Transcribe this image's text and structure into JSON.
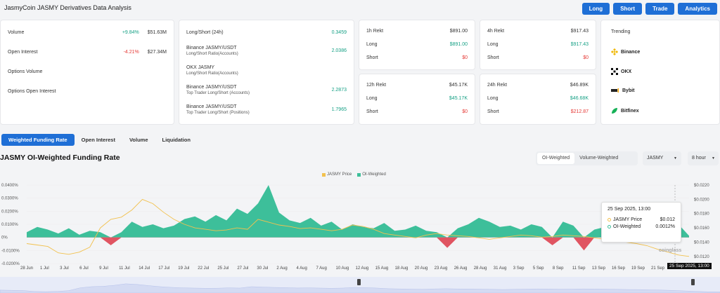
{
  "header": {
    "title": "JasmyCoin JASMY Derivatives Data Analysis",
    "buttons": [
      "Long",
      "Short",
      "Trade",
      "Analytics"
    ]
  },
  "overview": {
    "rows": [
      {
        "label": "Volume",
        "pct": "+9.84%",
        "value": "$51.63M"
      },
      {
        "label": "Open Interest",
        "pct": "-4.21%",
        "value": "$27.34M"
      },
      {
        "label": "Options Volume"
      },
      {
        "label": "Options Open Interest"
      }
    ]
  },
  "longshort": {
    "rows": [
      {
        "label": "Long/Short (24h)",
        "value": "0.3459"
      },
      {
        "label": "Binance JASMY/USDT",
        "sub": "Long/Short Ratio(Accounts)",
        "value": "2.0386"
      },
      {
        "label": "OKX JASMY",
        "sub": "Long/Short Ratio(Accounts)",
        "value": ""
      },
      {
        "label": "Binance JASMY/USDT",
        "sub": "Top Trader Long/Short (Accounts)",
        "value": "2.2873"
      },
      {
        "label": "Binance JASMY/USDT",
        "sub": "Top Trader Long/Short (Positions)",
        "value": "1.7965"
      }
    ]
  },
  "rekt": {
    "h1": {
      "title": "1h Rekt",
      "total": "$891.00",
      "long": "$891.00",
      "short": "$0"
    },
    "h4": {
      "title": "4h Rekt",
      "total": "$917.43",
      "long": "$917.43",
      "short": "$0"
    },
    "h12": {
      "title": "12h Rekt",
      "total": "$45.17K",
      "long": "$45.17K",
      "short": "$0"
    },
    "h24": {
      "title": "24h Rekt",
      "total": "$46.89K",
      "long": "$46.68K",
      "short": "$212.87"
    },
    "long_label": "Long",
    "short_label": "Short"
  },
  "trending": {
    "title": "Trending",
    "items": [
      "Binance",
      "OKX",
      "Bybit",
      "Bitfinex"
    ]
  },
  "tabs": [
    "Weighted Funding Rate",
    "Open Interest",
    "Volume",
    "Liquidation"
  ],
  "chart_header": {
    "title": "JASMY OI-Weighted Funding Rate",
    "segments": [
      "OI-Weighted",
      "Volume-Weighted"
    ],
    "symbol": "JASMY",
    "interval": "8 hour"
  },
  "tooltip": {
    "title": "25 Sep 2025, 13:00",
    "rows": [
      {
        "name": "JASMY Price",
        "value": "$0.012"
      },
      {
        "name": "OI-Weighted",
        "value": "0.0012%"
      }
    ],
    "time_label": "25 Sep 2025, 13:00"
  },
  "watermark": "coinglass",
  "colors": {
    "accent": "#1f6fd6",
    "funding_pos": "#3dbf9a",
    "funding_neg": "#e05562",
    "price": "#f2c14e"
  },
  "chart_data": {
    "type": "area",
    "x_tick_labels": [
      "28 Jun",
      "1 Jul",
      "3 Jul",
      "6 Jul",
      "9 Jul",
      "11 Jul",
      "14 Jul",
      "17 Jul",
      "19 Jul",
      "22 Jul",
      "25 Jul",
      "27 Jul",
      "30 Jul",
      "2 Aug",
      "4 Aug",
      "7 Aug",
      "10 Aug",
      "12 Aug",
      "15 Aug",
      "18 Aug",
      "20 Aug",
      "23 Aug",
      "26 Aug",
      "28 Aug",
      "31 Aug",
      "3 Sep",
      "5 Sep",
      "8 Sep",
      "11 Sep",
      "13 Sep",
      "16 Sep",
      "19 Sep",
      "21 Sep"
    ],
    "y_left_ticks": [
      "0.0400%",
      "0.0300%",
      "0.0200%",
      "0.0100%",
      "0%",
      "-0.0100%",
      "-0.0200%"
    ],
    "y_left_values": [
      0.04,
      0.03,
      0.02,
      0.01,
      0,
      -0.01,
      -0.02
    ],
    "y_right_ticks": [
      "$0.0220",
      "$0.0200",
      "$0.0180",
      "$0.0160",
      "$0.0140",
      "$0.0120"
    ],
    "y_right_values": [
      0.022,
      0.02,
      0.018,
      0.016,
      0.014,
      0.012
    ],
    "ylim_left": [
      -0.02,
      0.04
    ],
    "ylim_right": [
      0.011,
      0.022
    ],
    "legend_placement": "top",
    "series": [
      {
        "name": "JASMY Price",
        "values": [
          0.0138,
          0.0136,
          0.0134,
          0.0125,
          0.0123,
          0.0126,
          0.0133,
          0.016,
          0.0172,
          0.0175,
          0.0185,
          0.02,
          0.0194,
          0.0182,
          0.0172,
          0.0165,
          0.016,
          0.0158,
          0.0156,
          0.0157,
          0.016,
          0.0158,
          0.0172,
          0.0168,
          0.0164,
          0.0162,
          0.0159,
          0.016,
          0.0158,
          0.0156,
          0.0158,
          0.0164,
          0.0162,
          0.0158,
          0.0152,
          0.015,
          0.0148,
          0.0146,
          0.015,
          0.0152,
          0.015,
          0.0149,
          0.0148,
          0.0146,
          0.0144,
          0.0146,
          0.0148,
          0.015,
          0.0149,
          0.0147,
          0.0148,
          0.015,
          0.0149,
          0.0148,
          0.0146,
          0.0144,
          0.0143,
          0.014,
          0.0138,
          0.0135,
          0.013,
          0.0126,
          0.0122,
          0.012
        ]
      },
      {
        "name": "OI-Weighted",
        "values": [
          0.004,
          0.008,
          0.006,
          0.003,
          0.007,
          0.002,
          0.005,
          0.004,
          -0.006,
          0.004,
          0.012,
          0.008,
          0.01,
          0.007,
          0.009,
          0.014,
          0.016,
          0.012,
          0.017,
          0.013,
          0.022,
          0.018,
          0.026,
          0.04,
          0.019,
          0.013,
          0.011,
          0.015,
          0.009,
          0.012,
          0.006,
          0.01,
          0.008,
          0.007,
          0.011,
          0.005,
          0.006,
          0.009,
          0.005,
          0.004,
          -0.008,
          0.007,
          0.01,
          0.015,
          0.012,
          0.008,
          0.009,
          0.006,
          0.01,
          0.008,
          -0.006,
          0.012,
          0.009,
          -0.01,
          0.006,
          0.008,
          0.004,
          0.003,
          0.007,
          0.009,
          0.01,
          0.008,
          0.01,
          0.0012
        ]
      }
    ]
  }
}
